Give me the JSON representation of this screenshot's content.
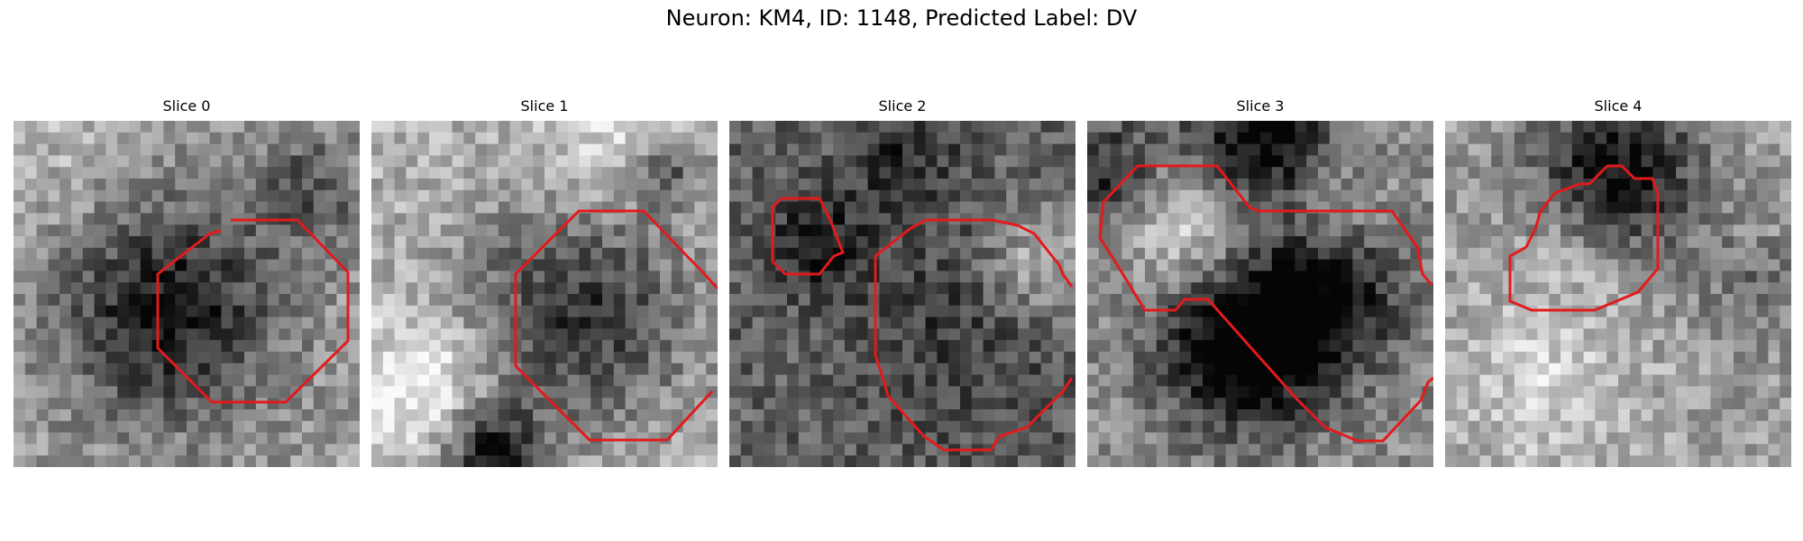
{
  "figure": {
    "title": "Neuron: KM4, ID: 1148, Predicted Label: DV",
    "contour_color": "#e31a1c",
    "colormap": "grayscale"
  },
  "panels": [
    {
      "title": "Slice 0"
    },
    {
      "title": "Slice 1"
    },
    {
      "title": "Slice 2"
    },
    {
      "title": "Slice 3"
    },
    {
      "title": "Slice 4"
    }
  ]
}
